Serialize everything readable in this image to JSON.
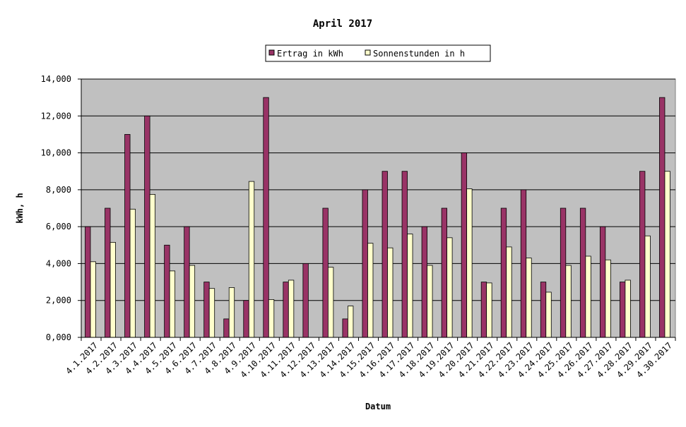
{
  "chart_data": {
    "type": "bar",
    "title": "April 2017",
    "xlabel": "Datum",
    "ylabel": "kWh, h",
    "ylim": [
      0,
      14
    ],
    "yticks": [
      "0,000",
      "2,000",
      "4,000",
      "6,000",
      "8,000",
      "10,000",
      "12,000",
      "14,000"
    ],
    "grid": true,
    "legend_position": "top",
    "categories": [
      "4.1.2017",
      "4.2.2017",
      "4.3.2017",
      "4.4.2017",
      "4.5.2017",
      "4.6.2017",
      "4.7.2017",
      "4.8.2017",
      "4.9.2017",
      "4.10.2017",
      "4.11.2017",
      "4.12.2017",
      "4.13.2017",
      "4.14.2017",
      "4.15.2017",
      "4.16.2017",
      "4.17.2017",
      "4.18.2017",
      "4.19.2017",
      "4.20.2017",
      "4.21.2017",
      "4.22.2017",
      "4.23.2017",
      "4.24.2017",
      "4.25.2017",
      "4.26.2017",
      "4.27.2017",
      "4.28.2017",
      "4.29.2017",
      "4.30.2017"
    ],
    "series": [
      {
        "name": "Ertrag in kWh",
        "color": "#993366",
        "values": [
          6,
          7,
          11,
          12,
          5,
          6,
          3,
          1,
          2,
          13,
          3,
          4,
          7,
          1,
          8,
          9,
          9,
          6,
          7,
          10,
          3,
          7,
          8,
          3,
          7,
          7,
          6,
          3,
          9,
          13
        ]
      },
      {
        "name": "Sonnenstunden in h",
        "color": "#ffffcc",
        "values": [
          4.1,
          5.15,
          6.95,
          7.75,
          3.6,
          3.9,
          2.65,
          2.7,
          8.45,
          2.05,
          3.1,
          0,
          3.8,
          1.7,
          5.1,
          4.85,
          5.6,
          3.9,
          5.4,
          8.05,
          2.95,
          4.9,
          4.3,
          2.45,
          3.9,
          4.4,
          4.2,
          3.1,
          5.5,
          9.0
        ]
      }
    ],
    "colors": {
      "plot_background": "#c0c0c0",
      "gridline": "#000000"
    }
  }
}
